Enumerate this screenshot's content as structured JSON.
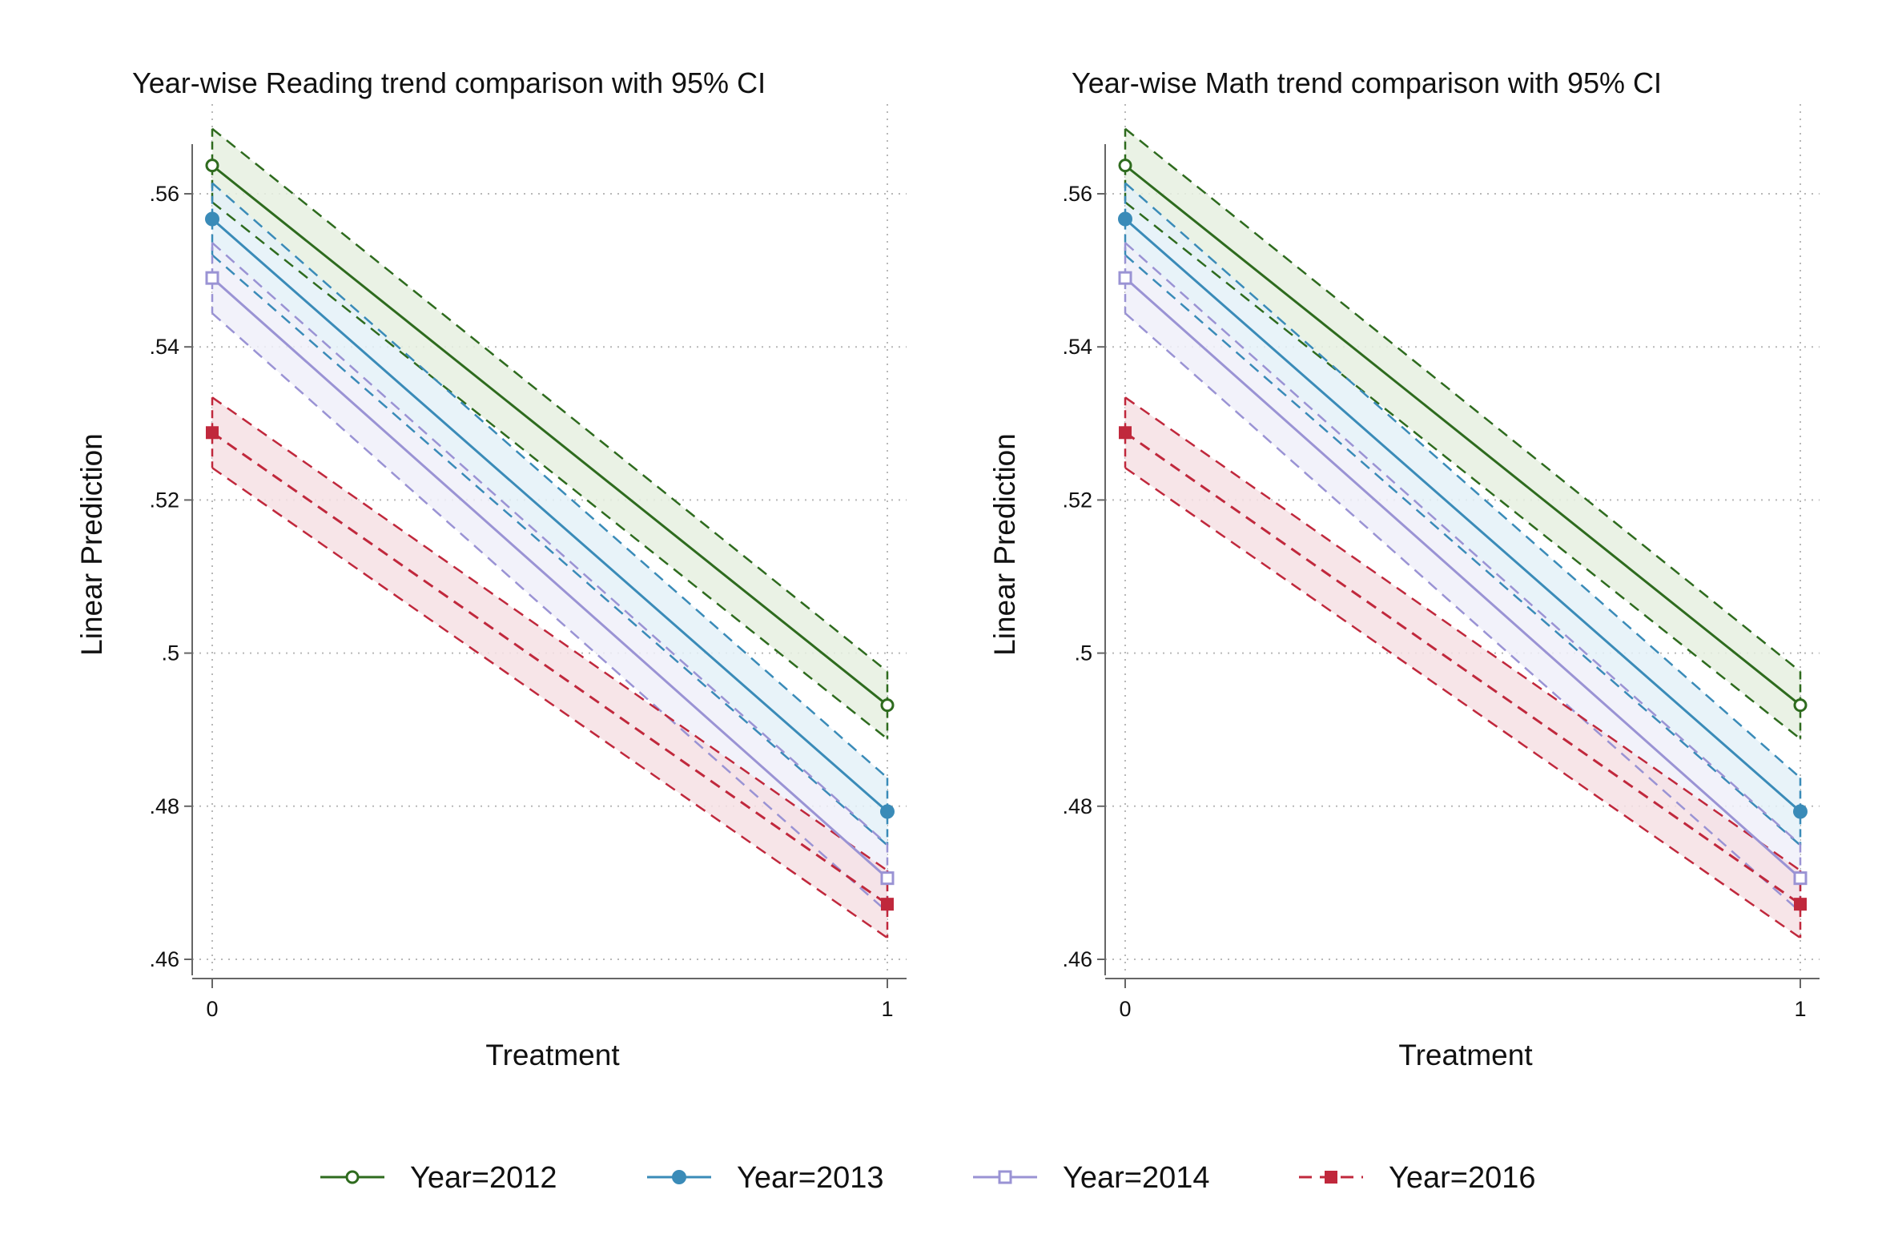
{
  "chart_data": [
    {
      "type": "line",
      "title": "Year-wise Reading trend comparison with 95% CI",
      "xlabel": "Treatment",
      "ylabel": "Linear Prediction",
      "x": [
        0,
        1
      ],
      "x_ticks": [
        "0",
        "1"
      ],
      "ylim": [
        0.46,
        0.565
      ],
      "y_ticks": [
        ".46",
        ".48",
        ".5",
        ".52",
        ".54",
        ".56"
      ],
      "y_tick_values": [
        0.46,
        0.48,
        0.5,
        0.52,
        0.54,
        0.56
      ],
      "grid": true,
      "series": [
        {
          "name": "Year=2012",
          "values": [
            0.5637,
            0.4932
          ],
          "ci_lower": [
            0.5589,
            0.4888
          ],
          "ci_upper": [
            0.5685,
            0.4976
          ]
        },
        {
          "name": "Year=2013",
          "values": [
            0.5567,
            0.4793
          ],
          "ci_lower": [
            0.552,
            0.4749
          ],
          "ci_upper": [
            0.5614,
            0.4837
          ]
        },
        {
          "name": "Year=2014",
          "values": [
            0.549,
            0.4706
          ],
          "ci_lower": [
            0.5444,
            0.4662
          ],
          "ci_upper": [
            0.5536,
            0.475
          ]
        },
        {
          "name": "Year=2016",
          "values": [
            0.5288,
            0.4672
          ],
          "ci_lower": [
            0.5242,
            0.4628
          ],
          "ci_upper": [
            0.5334,
            0.4716
          ]
        }
      ]
    },
    {
      "type": "line",
      "title": "Year-wise Math trend comparison with 95% CI",
      "xlabel": "Treatment",
      "ylabel": "Linear Prediction",
      "x": [
        0,
        1
      ],
      "x_ticks": [
        "0",
        "1"
      ],
      "ylim": [
        0.46,
        0.565
      ],
      "y_ticks": [
        ".46",
        ".48",
        ".5",
        ".52",
        ".54",
        ".56"
      ],
      "y_tick_values": [
        0.46,
        0.48,
        0.5,
        0.52,
        0.54,
        0.56
      ],
      "grid": true,
      "series": [
        {
          "name": "Year=2012",
          "values": [
            0.5637,
            0.4932
          ],
          "ci_lower": [
            0.5589,
            0.4888
          ],
          "ci_upper": [
            0.5685,
            0.4976
          ]
        },
        {
          "name": "Year=2013",
          "values": [
            0.5567,
            0.4793
          ],
          "ci_lower": [
            0.552,
            0.4749
          ],
          "ci_upper": [
            0.5614,
            0.4837
          ]
        },
        {
          "name": "Year=2014",
          "values": [
            0.549,
            0.4706
          ],
          "ci_lower": [
            0.5444,
            0.4662
          ],
          "ci_upper": [
            0.5536,
            0.475
          ]
        },
        {
          "name": "Year=2016",
          "values": [
            0.5288,
            0.4672
          ],
          "ci_lower": [
            0.5242,
            0.4628
          ],
          "ci_upper": [
            0.5334,
            0.4716
          ]
        }
      ]
    }
  ],
  "series_style": [
    {
      "color": "#2e6b1e",
      "fill": "#e6f0e0",
      "marker": "hollow-circle",
      "line": "solid"
    },
    {
      "color": "#3a8bb8",
      "fill": "#e4f1f8",
      "marker": "filled-circle",
      "line": "solid"
    },
    {
      "color": "#9a93d4",
      "fill": "#f0f0f9",
      "marker": "hollow-square",
      "line": "solid"
    },
    {
      "color": "#c0283c",
      "fill": "#f6e1e4",
      "marker": "filled-square",
      "line": "dashed"
    }
  ],
  "legend": {
    "position": "bottom",
    "items": [
      "Year=2012",
      "Year=2013",
      "Year=2014",
      "Year=2016"
    ]
  }
}
